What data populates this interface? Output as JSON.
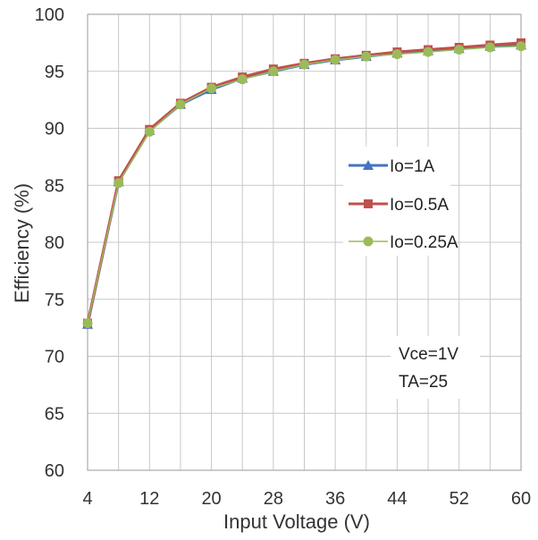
{
  "chart_data": {
    "type": "line",
    "title": "",
    "xlabel": "Input Voltage (V)",
    "ylabel": "Efficiency (%)",
    "xlim": [
      4,
      60
    ],
    "ylim": [
      60,
      100
    ],
    "x_ticks": [
      "4",
      "12",
      "20",
      "28",
      "36",
      "44",
      "52",
      "60"
    ],
    "y_ticks": [
      "60",
      "65",
      "70",
      "75",
      "80",
      "85",
      "90",
      "95",
      "100"
    ],
    "grid": true,
    "legend_position": "right",
    "x": [
      4,
      8,
      12,
      16,
      20,
      24,
      28,
      32,
      36,
      40,
      44,
      48,
      52,
      56,
      60
    ],
    "series": [
      {
        "name": "Io=1A",
        "color": "#4472C4",
        "marker": "triangle",
        "values": [
          72.8,
          85.3,
          89.8,
          92.1,
          93.4,
          94.4,
          95.0,
          95.6,
          96.0,
          96.3,
          96.6,
          96.8,
          97.0,
          97.2,
          97.3
        ]
      },
      {
        "name": "Io=0.5A",
        "color": "#C0504D",
        "marker": "square",
        "values": [
          72.9,
          85.4,
          89.9,
          92.2,
          93.6,
          94.5,
          95.2,
          95.7,
          96.1,
          96.4,
          96.7,
          96.9,
          97.1,
          97.3,
          97.5
        ]
      },
      {
        "name": "Io=0.25A",
        "color": "#9BBB59",
        "marker": "circle",
        "values": [
          72.9,
          85.2,
          89.7,
          92.1,
          93.5,
          94.3,
          95.0,
          95.6,
          96.0,
          96.3,
          96.5,
          96.7,
          96.9,
          97.1,
          97.2
        ]
      }
    ],
    "annotations": [
      "Vce=1V",
      "TA=25"
    ]
  }
}
